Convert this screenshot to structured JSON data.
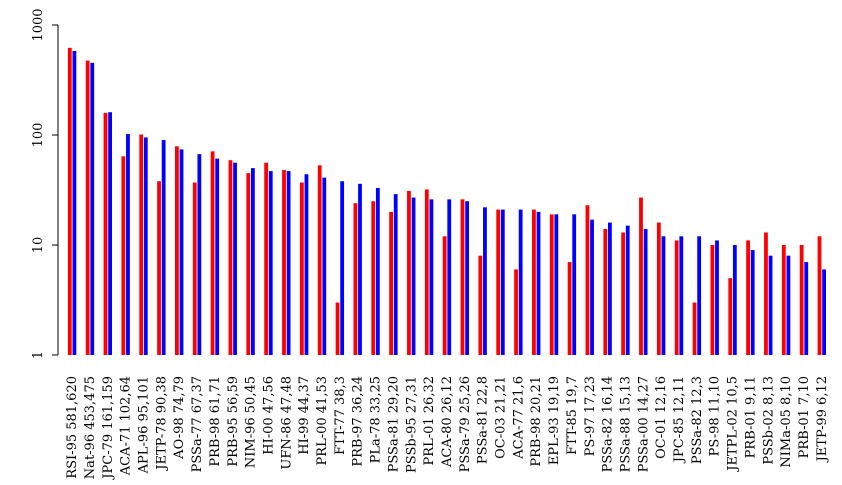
{
  "chart_data": {
    "type": "bar",
    "y_scale": "log",
    "ylim": [
      1,
      1000
    ],
    "yticks": [
      "1",
      "10",
      "100",
      "1000"
    ],
    "grid": false,
    "legend": "none",
    "colors": {
      "series1": "#ff0000",
      "series2": "#0000ff"
    },
    "categories": [
      "RSI-95 581,620",
      "Nat-96 453,475",
      "JPC-79 161,159",
      "ACA-71 102,64",
      "APL-96 95,101",
      "JETP-78 90,38",
      "AO-98 74,79",
      "PSSa-77 67,37",
      "PRB-98 61,71",
      "PRB-95 56,59",
      "NIM-96 50,45",
      "HI-00 47,56",
      "UFN-86 47,48",
      "HI-99 44,37",
      "PRL-00 41,53",
      "FTT-77 38,3",
      "PRB-97 36,24",
      "PLa-78 33,25",
      "PSSa-81 29,20",
      "PSSb-95 27,31",
      "PRL-01 26,32",
      "ACA-80 26,12",
      "PSSa-79 25,26",
      "PSSa-81 22,8",
      "OC-03 21,21",
      "ACA-77 21,6",
      "PRB-98 20,21",
      "EPL-93 19,19",
      "FTT-85 19,7",
      "PS-97 17,23",
      "PSSa-82 16,14",
      "PSSa-88 15,13",
      "PSSa-00 14,27",
      "OC-01 12,16",
      "JPC-85 12,11",
      "PSSa-82 12,3",
      "PS-98 11,10",
      "JETPL-02 10,5",
      "PRB-01 9,11",
      "PSSb-02 8,13",
      "NIMa-05 8,10",
      "PRB-01 7,10",
      "JETP-99 6,12"
    ],
    "series": [
      {
        "values": [
          620,
          475,
          159,
          64,
          101,
          38,
          79,
          37,
          71,
          59,
          45,
          56,
          48,
          37,
          53,
          3,
          24,
          25,
          20,
          31,
          32,
          12,
          26,
          8,
          21,
          6,
          21,
          19,
          7,
          23,
          14,
          13,
          27,
          16,
          11,
          3,
          10,
          5,
          11,
          13,
          10,
          10,
          12
        ]
      },
      {
        "values": [
          581,
          453,
          161,
          102,
          95,
          90,
          74,
          67,
          61,
          56,
          50,
          47,
          47,
          44,
          41,
          38,
          36,
          33,
          29,
          27,
          26,
          26,
          25,
          22,
          21,
          21,
          20,
          19,
          19,
          17,
          16,
          15,
          14,
          12,
          12,
          12,
          11,
          10,
          9,
          8,
          8,
          7,
          6
        ]
      }
    ]
  }
}
